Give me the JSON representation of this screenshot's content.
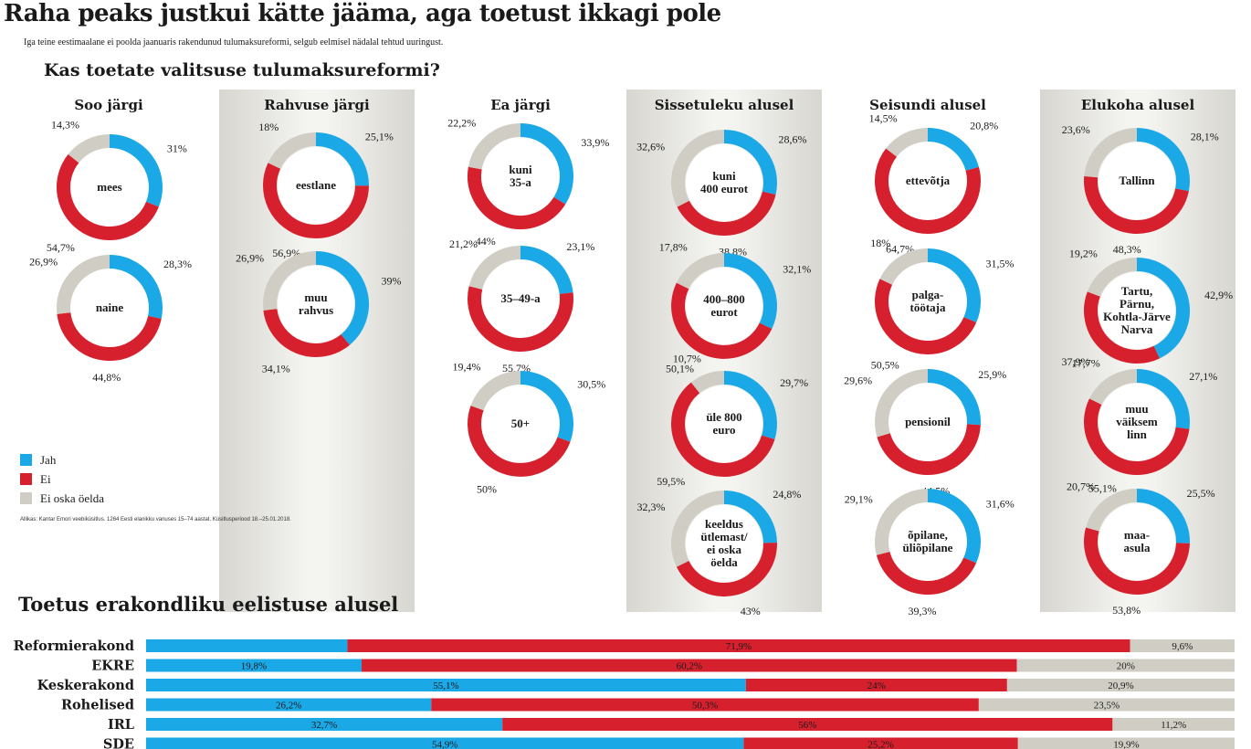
{
  "headline": "Raha peaks justkui kätte jääma, aga toetust ikkagi pole",
  "subline": "Iga teine eestimaalane ei poolda jaanuaris rakendunud tulumaksureformi, selgub eelmisel nädalal tehtud  uuringust.",
  "question": "Kas toetate valitsuse tulumaksureformi?",
  "legend": [
    {
      "label": "Jah",
      "color": "#1ba8e6"
    },
    {
      "label": "Ei",
      "color": "#d7202e"
    },
    {
      "label": "Ei oska öelda",
      "color": "#cfcdc4"
    }
  ],
  "source": "Allikas: Kantar Emori veebiküsitlus. 1264 Eesti elanikku vanuses 15–74 aastat. Küsitlusperiood 18.–25.01.2018.",
  "bar_title": "Toetus erakondliku eelistuse alusel",
  "chart_data": [
    {
      "type": "pie",
      "variant": "donut",
      "title": "Kas toetate valitsuse tulumaksureformi?",
      "series": [
        "Jah",
        "Ei",
        "Ei oska öelda"
      ],
      "groups": [
        {
          "title": "Soo järgi",
          "shaded": false,
          "donuts": [
            {
              "label": [
                "mees"
              ],
              "values": [
                31,
                54.7,
                14.3
              ],
              "labels": [
                "31%",
                "54,7%",
                "14,3%"
              ]
            },
            {
              "label": [
                "naine"
              ],
              "values": [
                28.3,
                44.8,
                26.9
              ],
              "labels": [
                "28,3%",
                "44,8%",
                "26,9%"
              ]
            }
          ]
        },
        {
          "title": "Rahvuse järgi",
          "shaded": true,
          "donuts": [
            {
              "label": [
                "eestlane"
              ],
              "values": [
                25.1,
                56.9,
                18
              ],
              "labels": [
                "25,1%",
                "56,9%",
                "18%"
              ]
            },
            {
              "label": [
                "muu",
                "rahvus"
              ],
              "values": [
                39,
                34.1,
                26.9
              ],
              "labels": [
                "39%",
                "34,1%",
                "26,9%"
              ]
            }
          ]
        },
        {
          "title": "Ea järgi",
          "shaded": false,
          "donuts": [
            {
              "label": [
                "kuni",
                "35-a"
              ],
              "values": [
                33.9,
                44,
                22.2
              ],
              "labels": [
                "33,9%",
                "44%",
                "22,2%"
              ]
            },
            {
              "label": [
                "35–49-a"
              ],
              "values": [
                23.1,
                55.7,
                21.2
              ],
              "labels": [
                "23,1%",
                "55,7%",
                "21,2%"
              ]
            },
            {
              "label": [
                "50+"
              ],
              "values": [
                30.5,
                50,
                19.4
              ],
              "labels": [
                "30,5%",
                "50%",
                "19,4%"
              ]
            }
          ]
        },
        {
          "title": "Sissetuleku alusel",
          "shaded": true,
          "donuts": [
            {
              "label": [
                "kuni",
                "400 eurot"
              ],
              "values": [
                28.6,
                38.8,
                32.6
              ],
              "labels": [
                "28,6%",
                "38,8%",
                "32,6%"
              ]
            },
            {
              "label": [
                "400–800",
                "eurot"
              ],
              "values": [
                32.1,
                50.1,
                17.8
              ],
              "labels": [
                "32,1%",
                "50,1%",
                "17,8%"
              ]
            },
            {
              "label": [
                "üle 800",
                "euro"
              ],
              "values": [
                29.7,
                59.5,
                10.7
              ],
              "labels": [
                "29,7%",
                "59,5%",
                "10,7%"
              ]
            },
            {
              "label": [
                "keeldus",
                "ütlemast/",
                "ei oska",
                "öelda"
              ],
              "values": [
                24.8,
                43,
                32.3
              ],
              "labels": [
                "24,8%",
                "43%",
                "32,3%"
              ]
            }
          ]
        },
        {
          "title": "Seisundi alusel",
          "shaded": false,
          "donuts": [
            {
              "label": [
                "ettevõtja"
              ],
              "values": [
                20.8,
                64.7,
                14.5
              ],
              "labels": [
                "20,8%",
                "64,7%",
                "14,5%"
              ]
            },
            {
              "label": [
                "palga-",
                "töötaja"
              ],
              "values": [
                31.5,
                50.5,
                18
              ],
              "labels": [
                "31,5%",
                "50,5%",
                "18%"
              ]
            },
            {
              "label": [
                "pensionil"
              ],
              "values": [
                25.9,
                44.5,
                29.6
              ],
              "labels": [
                "25,9%",
                "44,5%",
                "29,6%"
              ]
            },
            {
              "label": [
                "õpilane,",
                "üliõpilane"
              ],
              "values": [
                31.6,
                39.3,
                29.1
              ],
              "labels": [
                "31,6%",
                "39,3%",
                "29,1%"
              ]
            }
          ]
        },
        {
          "title": "Elukoha alusel",
          "shaded": true,
          "donuts": [
            {
              "label": [
                "Tallinn"
              ],
              "values": [
                28.1,
                48.3,
                23.6
              ],
              "labels": [
                "28,1%",
                "48,3%",
                "23,6%"
              ]
            },
            {
              "label": [
                "Tartu,",
                "Pärnu,",
                "Kohtla-Järve",
                "Narva"
              ],
              "values": [
                42.9,
                37.9,
                19.2
              ],
              "labels": [
                "42,9%",
                "37,9%",
                "19,2%"
              ]
            },
            {
              "label": [
                "muu",
                "väiksem",
                "linn"
              ],
              "values": [
                27.1,
                55.1,
                17.7
              ],
              "labels": [
                "27,1%",
                "55,1%",
                "17,7%"
              ]
            },
            {
              "label": [
                "maa-",
                "asula"
              ],
              "values": [
                25.5,
                53.8,
                20.7
              ],
              "labels": [
                "25,5%",
                "53,8%",
                "20,7%"
              ]
            }
          ]
        }
      ]
    },
    {
      "type": "bar",
      "variant": "stacked-horizontal-100",
      "title": "Toetus erakondliku eelistuse alusel",
      "categories": [
        "Reformierakond",
        "EKRE",
        "Keskerakond",
        "Rohelised",
        "IRL",
        "SDE"
      ],
      "series": [
        {
          "name": "Jah",
          "values": [
            18.5,
            19.8,
            55.1,
            26.2,
            32.7,
            54.9
          ],
          "labels": [
            "",
            "19,8%",
            "55,1%",
            "26,2%",
            "32,7%",
            "54,9%"
          ]
        },
        {
          "name": "Ei",
          "values": [
            71.9,
            60.2,
            24,
            50.3,
            56,
            25.2
          ],
          "labels": [
            "71,9%",
            "60,2%",
            "24%",
            "50,3%",
            "56%",
            "25,2%"
          ]
        },
        {
          "name": "Ei oska öelda",
          "values": [
            9.6,
            20,
            20.9,
            23.5,
            11.2,
            19.9
          ],
          "labels": [
            "9,6%",
            "20%",
            "20,9%",
            "23,5%",
            "11,2%",
            "19,9%"
          ]
        }
      ]
    }
  ]
}
